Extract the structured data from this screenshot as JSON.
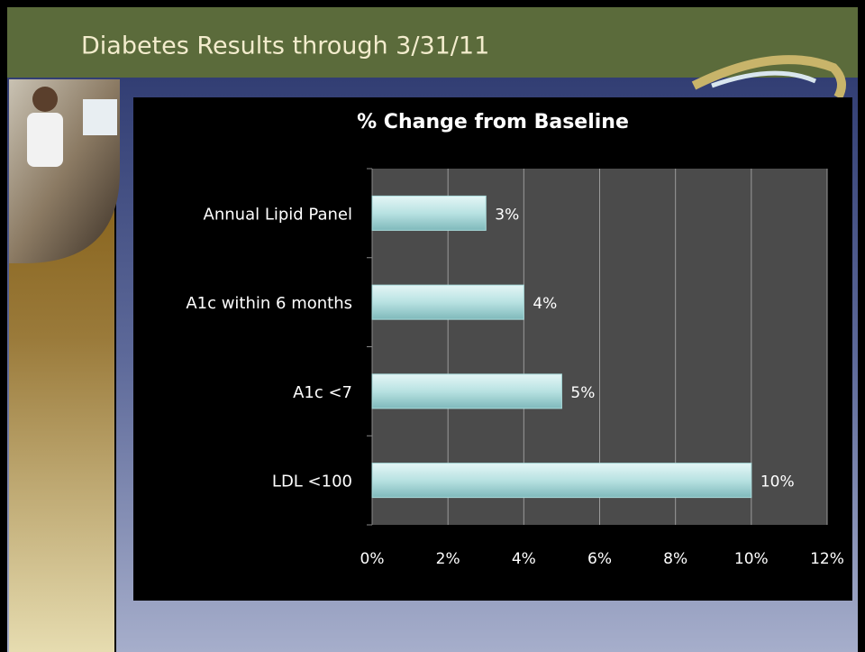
{
  "slide": {
    "title": "Diabetes Results through 3/31/11"
  },
  "chart_data": {
    "type": "barh",
    "title": "% Change from Baseline",
    "categories": [
      "Annual Lipid Panel",
      "A1c within 6 months",
      "A1c <7",
      "LDL <100"
    ],
    "values": [
      3,
      4,
      5,
      10
    ],
    "value_labels": [
      "3%",
      "4%",
      "5%",
      "10%"
    ],
    "color": "#a9dcdc",
    "xlim": [
      0,
      12
    ],
    "xticks": [
      {
        "value": 0,
        "label": "0%"
      },
      {
        "value": 2,
        "label": "2%"
      },
      {
        "value": 4,
        "label": "4%"
      },
      {
        "value": 6,
        "label": "6%"
      },
      {
        "value": 8,
        "label": "8%"
      },
      {
        "value": 10,
        "label": "10%"
      },
      {
        "value": 12,
        "label": "12%"
      }
    ],
    "grid": true
  }
}
